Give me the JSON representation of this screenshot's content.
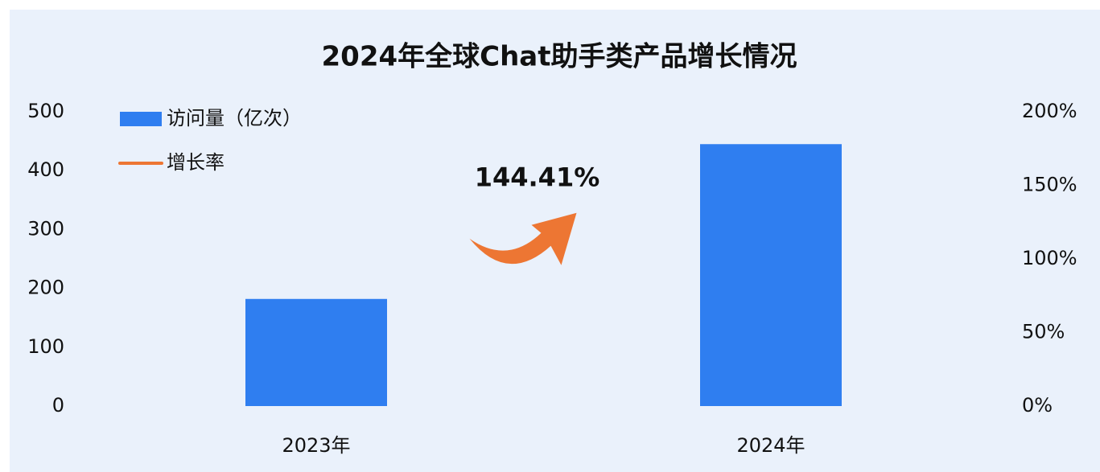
{
  "chart_data": {
    "type": "bar",
    "title": "2024年全球Chat助手类产品增长情况",
    "categories": [
      "2023年",
      "2024年"
    ],
    "series": [
      {
        "name": "访问量（亿次）",
        "color": "#2f7ef0",
        "values": [
          182,
          445
        ]
      },
      {
        "name": "增长率",
        "color": "#ed7633",
        "axis": "y2",
        "type": "line",
        "values": [
          null,
          144.41
        ],
        "value_labels": [
          null,
          "144.41%"
        ]
      }
    ],
    "ylim": [
      0,
      500
    ],
    "yticks": [
      0,
      100,
      200,
      300,
      400,
      500
    ],
    "y2lim": [
      0,
      200
    ],
    "y2ticks": [
      {
        "value": 0,
        "label": "0%"
      },
      {
        "value": 50,
        "label": "50%"
      },
      {
        "value": 100,
        "label": "100%"
      },
      {
        "value": 150,
        "label": "150%"
      },
      {
        "value": 200,
        "label": "200%"
      }
    ],
    "grid": false,
    "legend": "top-left"
  }
}
